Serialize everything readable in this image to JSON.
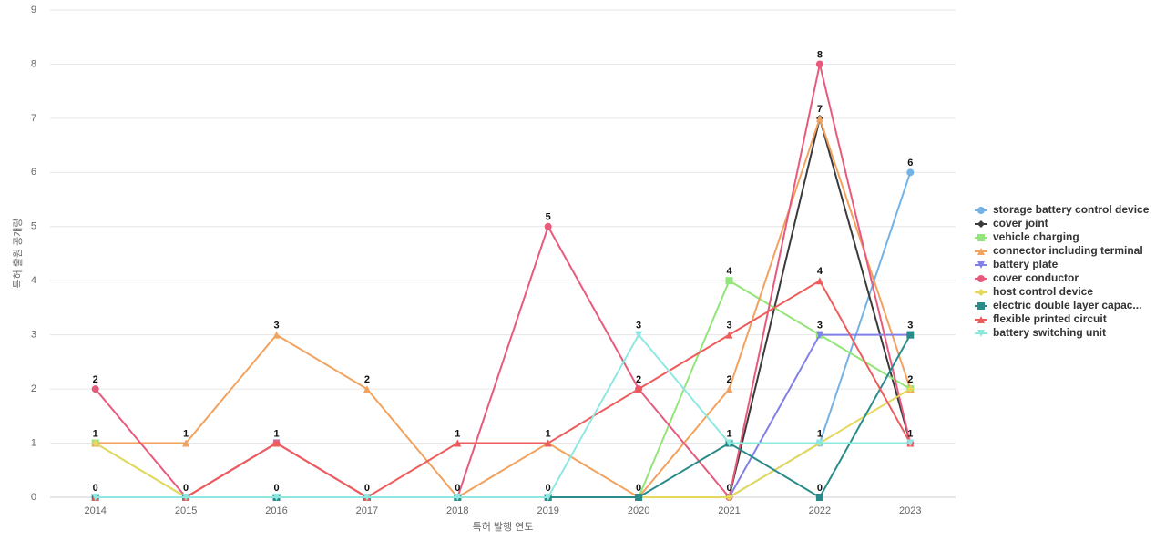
{
  "chart_data": {
    "type": "line",
    "x_label": "특허 발행 연도",
    "y_label": "특허 출원 공개량",
    "categories": [
      "2014",
      "2015",
      "2016",
      "2017",
      "2018",
      "2019",
      "2020",
      "2021",
      "2022",
      "2023"
    ],
    "ylim": [
      0,
      9
    ],
    "yticks": [
      0,
      1,
      2,
      3,
      4,
      5,
      6,
      7,
      8,
      9
    ],
    "grid": true,
    "legend": "right",
    "series": [
      {
        "name": "storage battery control device",
        "color": "#74b2e6",
        "marker": "circle",
        "values": [
          0,
          0,
          0,
          0,
          0,
          0,
          0,
          0,
          1,
          6
        ]
      },
      {
        "name": "cover joint",
        "color": "#3a3a3a",
        "marker": "diamond",
        "values": [
          0,
          0,
          0,
          0,
          0,
          0,
          0,
          0,
          7,
          1
        ]
      },
      {
        "name": "vehicle charging",
        "color": "#92e578",
        "marker": "square",
        "values": [
          1,
          0,
          0,
          0,
          0,
          0,
          0,
          4,
          3,
          2
        ]
      },
      {
        "name": "connector including terminal",
        "color": "#f2a25e",
        "marker": "triangle",
        "values": [
          1,
          1,
          3,
          2,
          0,
          1,
          0,
          2,
          7,
          2
        ]
      },
      {
        "name": "battery plate",
        "color": "#8080e6",
        "marker": "triangle-down",
        "values": [
          0,
          0,
          1,
          0,
          0,
          0,
          0,
          0,
          3,
          3
        ]
      },
      {
        "name": "cover conductor",
        "color": "#e85a7c",
        "marker": "circle",
        "values": [
          2,
          0,
          1,
          0,
          0,
          5,
          2,
          0,
          8,
          1
        ]
      },
      {
        "name": "host control device",
        "color": "#e5d85c",
        "marker": "diamond",
        "values": [
          1,
          0,
          0,
          0,
          0,
          0,
          0,
          0,
          1,
          2
        ]
      },
      {
        "name": "electric double layer capac...",
        "color": "#2a8c8a",
        "marker": "square",
        "values": [
          0,
          0,
          0,
          0,
          0,
          0,
          0,
          1,
          0,
          3
        ]
      },
      {
        "name": "flexible printed circuit",
        "color": "#ee5b5b",
        "marker": "triangle",
        "values": [
          0,
          0,
          1,
          0,
          1,
          1,
          2,
          3,
          4,
          1
        ]
      },
      {
        "name": "battery switching unit",
        "color": "#8ee8e2",
        "marker": "triangle-down",
        "values": [
          0,
          0,
          0,
          0,
          0,
          0,
          3,
          1,
          1,
          1
        ]
      }
    ]
  }
}
